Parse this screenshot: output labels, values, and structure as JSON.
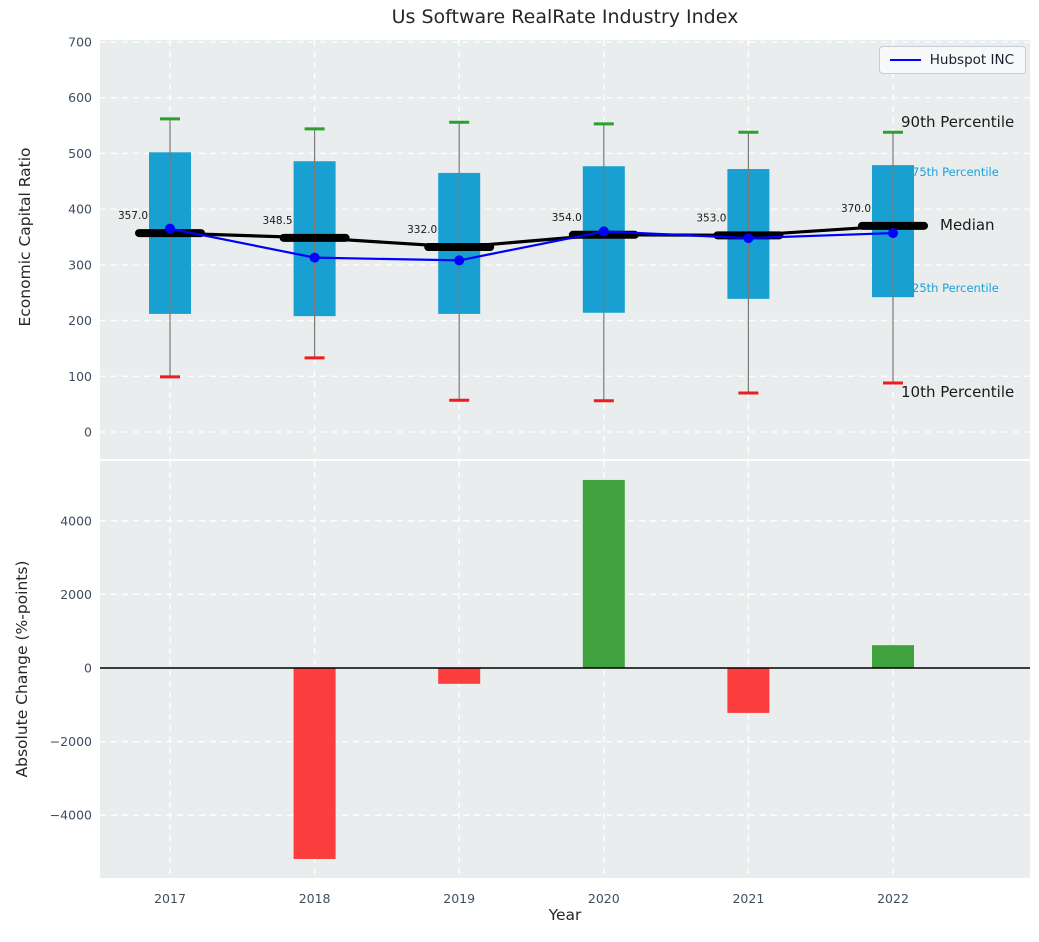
{
  "title": "Us Software RealRate Industry Index",
  "legend": {
    "label": "Hubspot INC",
    "line_color": "#0000ff"
  },
  "colors": {
    "axes_bg": "#e9edee",
    "grid": "#ffffff",
    "box_fill": "#18a0d2",
    "whisker": "#7a7a7a",
    "cap_90th": "#2ca02c",
    "cap_10th": "#ee1c1c",
    "median_line": "#000000",
    "hubspot_line": "#0000ff",
    "bar_positive": "#3fa23f",
    "bar_negative": "#fb3d3d",
    "tick_label": "#3f4f63",
    "text_dark": "#1a1a1a",
    "percentile_accent": "#1ea0d4",
    "zero_line": "#000000"
  },
  "chart_data": [
    {
      "type": "boxplot+line",
      "title": "Us Software RealRate Industry Index",
      "ylabel": "Economic Capital Ratio",
      "ylim": [
        0,
        700
      ],
      "yticks": [
        0,
        100,
        200,
        300,
        400,
        500,
        600,
        700
      ],
      "grid": true,
      "legend_position": "upper right",
      "categories": [
        "2017",
        "2018",
        "2019",
        "2020",
        "2021",
        "2022"
      ],
      "series": [
        {
          "name": "90th Percentile",
          "values": [
            562,
            544,
            556,
            553,
            538,
            538
          ]
        },
        {
          "name": "75th Percentile",
          "values": [
            502,
            486,
            465,
            477,
            472,
            479
          ]
        },
        {
          "name": "Median",
          "values": [
            357.0,
            348.5,
            332.0,
            354.0,
            353.0,
            370.0
          ]
        },
        {
          "name": "25th Percentile",
          "values": [
            212,
            208,
            212,
            214,
            239,
            242
          ]
        },
        {
          "name": "10th Percentile",
          "values": [
            99,
            133,
            57,
            56,
            70,
            88
          ]
        },
        {
          "name": "Hubspot INC",
          "values": [
            365,
            313,
            308,
            360,
            348,
            357
          ]
        }
      ],
      "median_labels": [
        "357.0",
        "348.5",
        "332.0",
        "354.0",
        "353.0",
        "370.0"
      ],
      "annotations": [
        "90th Percentile",
        "75th Percentile",
        "Median",
        "25th Percentile",
        "10th Percentile"
      ],
      "legend_entries": [
        "Hubspot INC"
      ]
    },
    {
      "type": "bar",
      "xlabel": "Year",
      "ylabel": "Absolute Change (%-points)",
      "ylim": [
        -5700,
        5700
      ],
      "yticks": [
        -4000,
        -2000,
        0,
        2000,
        4000
      ],
      "grid": true,
      "categories": [
        "2017",
        "2018",
        "2019",
        "2020",
        "2021",
        "2022"
      ],
      "values": [
        0,
        -5190,
        -430,
        5110,
        -1220,
        620
      ]
    }
  ]
}
